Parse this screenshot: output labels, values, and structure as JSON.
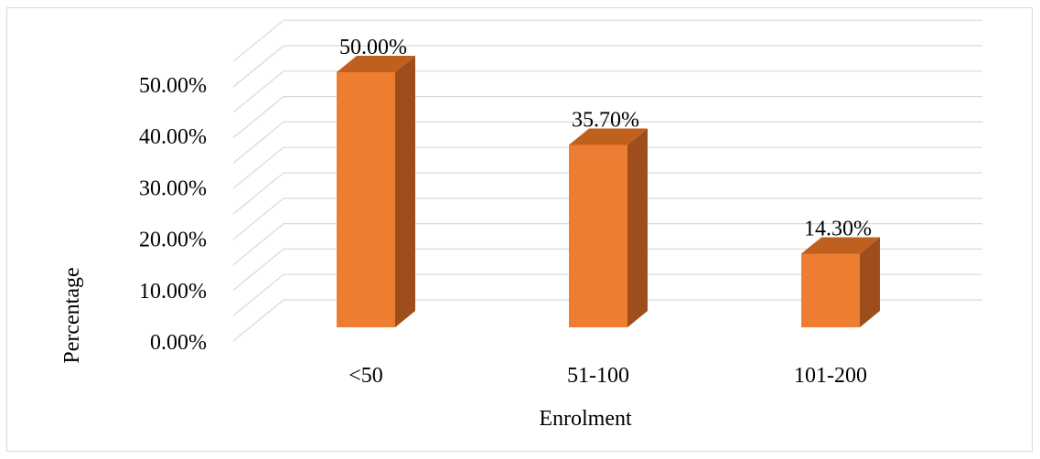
{
  "chart_data": {
    "type": "bar",
    "style": "3d-column",
    "title": "",
    "xlabel": "Enrolment",
    "ylabel": "Percentage",
    "categories": [
      "<50",
      "51-100",
      "101-200"
    ],
    "series": [
      {
        "values": [
          50.0,
          35.7,
          14.3
        ]
      }
    ],
    "data_labels": [
      "50.00%",
      "35.70%",
      "14.30%"
    ],
    "ylim": [
      0,
      50
    ],
    "yticks": [
      0,
      10,
      20,
      30,
      40,
      50
    ],
    "ytick_labels": [
      "0.00%",
      "10.00%",
      "20.00%",
      "30.00%",
      "40.00%",
      "50.00%"
    ],
    "grid": true,
    "legend": "none",
    "colors": {
      "bar_front": "#ed7d31",
      "bar_side": "#9e4e1d",
      "bar_top": "#c0601f",
      "grid": "#d9d9d9",
      "frame": "#d9d9d9"
    }
  }
}
